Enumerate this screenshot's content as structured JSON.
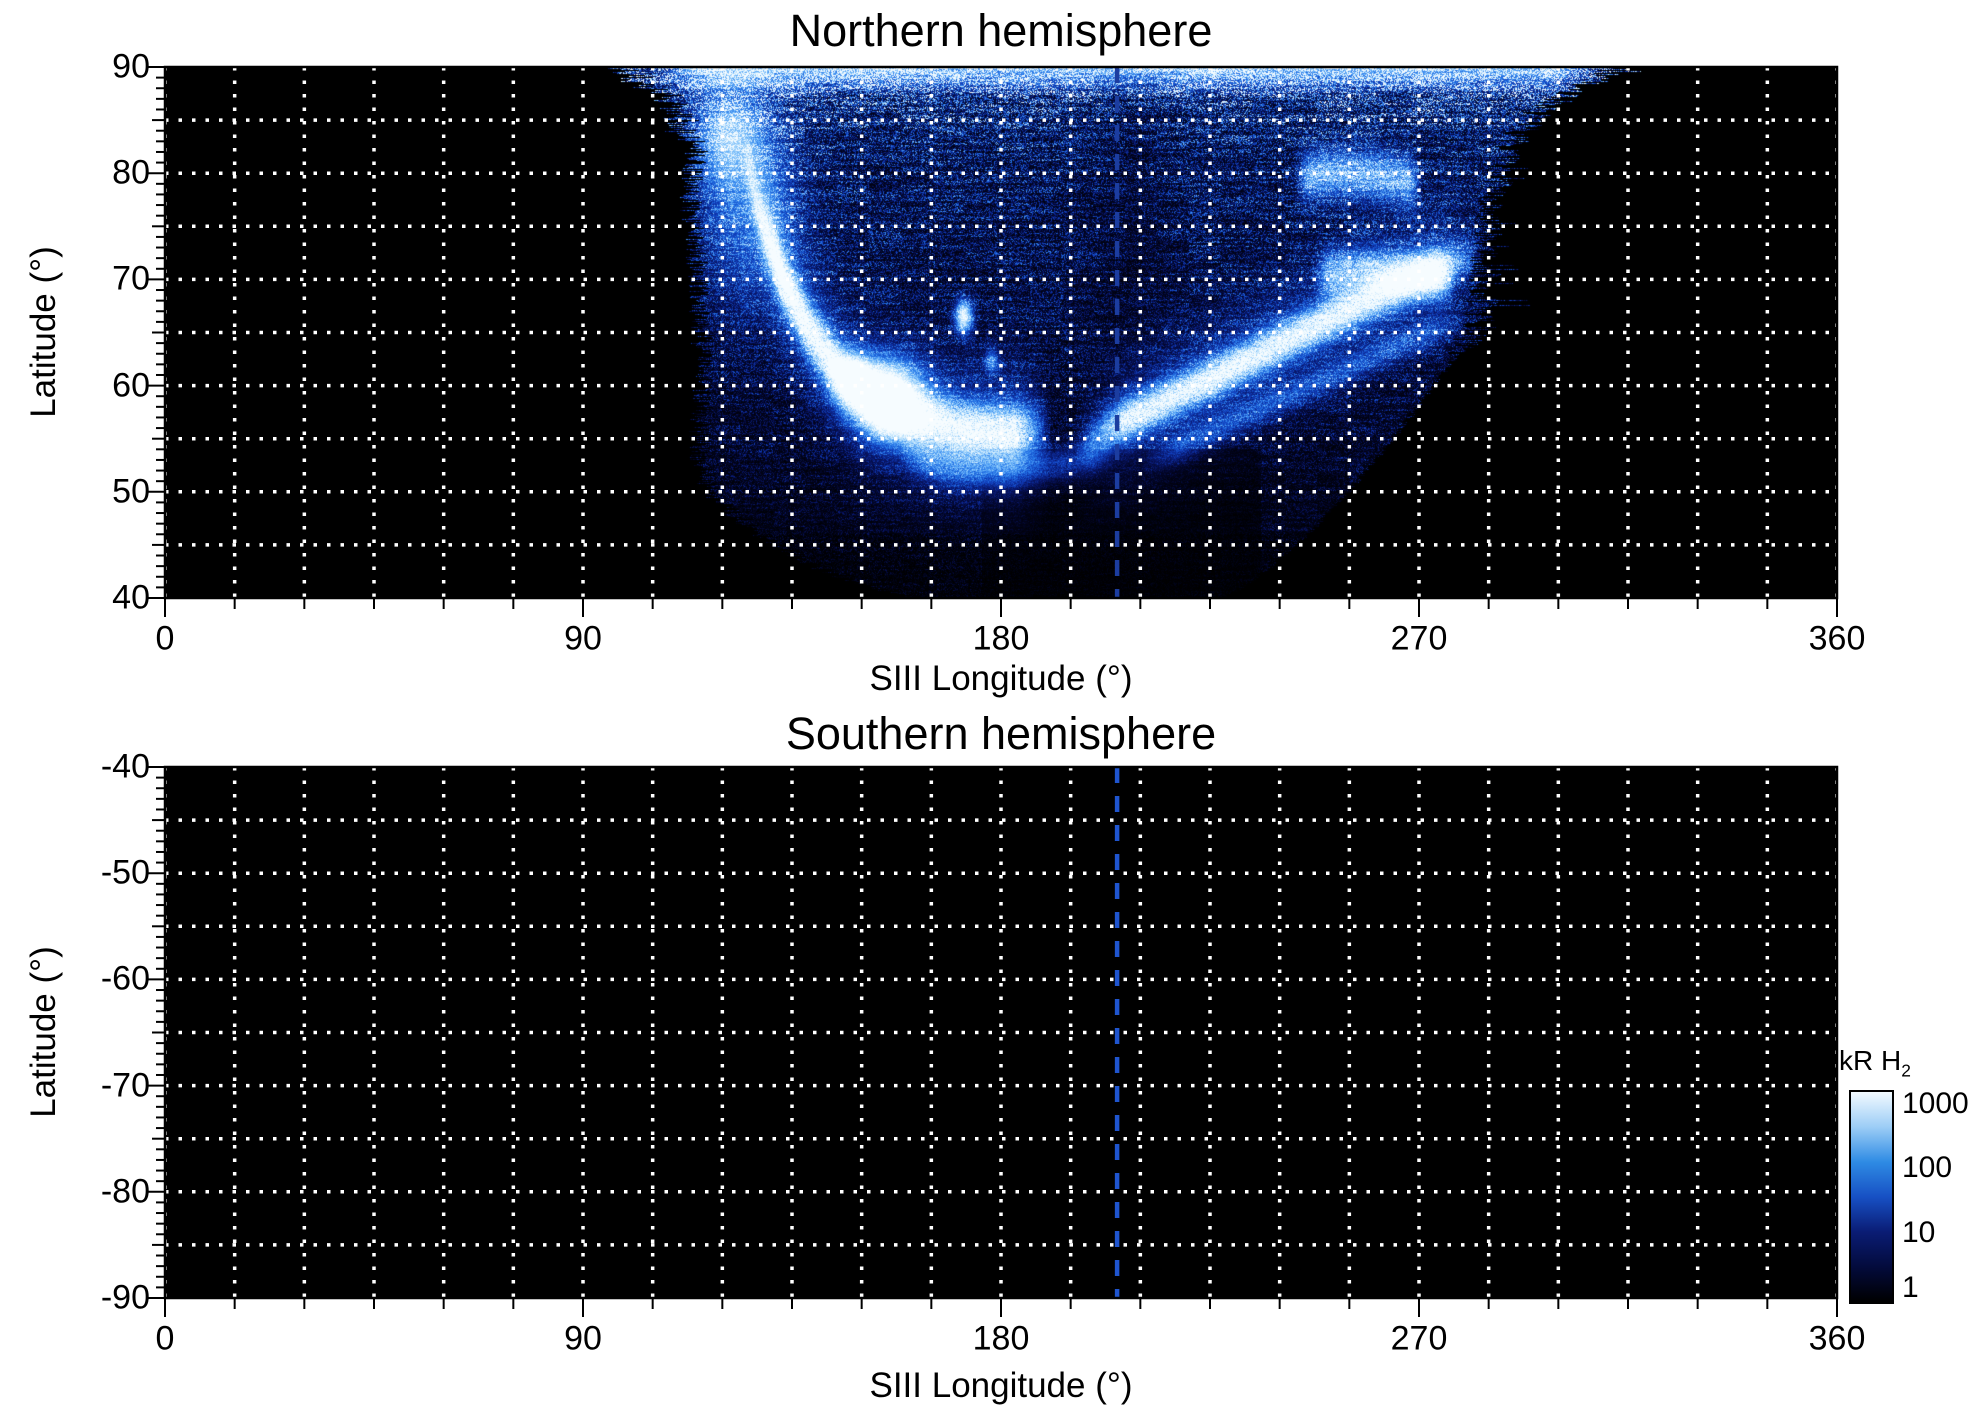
{
  "chart_data": {
    "type": "heatmap",
    "description": "Polar auroral H2 emission maps vs SIII longitude and latitude; northern hemisphere shows auroral data between ~101 and ~312 deg longitude, southern hemisphere map is empty (no data).",
    "intensity_units": "kR H2",
    "panels": [
      {
        "title": "Northern hemisphere",
        "xlabel": "SIII Longitude (°)",
        "ylabel": "Latitude (°)",
        "x_range": [
          0,
          360
        ],
        "y_range": [
          40,
          90
        ],
        "x_tick_labels": [
          "0",
          "90",
          "180",
          "270",
          "360"
        ],
        "x_tick_values": [
          0,
          90,
          180,
          270,
          360
        ],
        "y_tick_labels": [
          "90",
          "80",
          "70",
          "60",
          "50",
          "40"
        ],
        "y_tick_values": [
          90,
          80,
          70,
          60,
          50,
          40
        ],
        "grid": {
          "x_step_deg": 15,
          "y_step_deg": 5,
          "style": "dotted",
          "color": "#ffffff"
        },
        "marker_line": {
          "longitude": 205,
          "style": "dashed",
          "color": "#1c3da0"
        },
        "has_data": true,
        "coverage": {
          "lon_min": 101,
          "lon_max": 312,
          "lat_min": 40,
          "lat_max": 90
        },
        "render": {
          "seed": 7,
          "left_boundary": [
            [
              40,
              162
            ],
            [
              41.2,
              151
            ],
            [
              42.8,
              141
            ],
            [
              45.2,
              131
            ],
            [
              47.6,
              123
            ],
            [
              50,
              117
            ],
            [
              54,
              115
            ],
            [
              62,
              116
            ],
            [
              70,
              115
            ],
            [
              78,
              113
            ],
            [
              84,
              115
            ],
            [
              87,
              112
            ],
            [
              88.5,
              105
            ],
            [
              90,
              101
            ]
          ],
          "right_boundary": [
            [
              40,
              228
            ],
            [
              42.6,
              237
            ],
            [
              46.4,
              247
            ],
            [
              51.2,
              257
            ],
            [
              56,
              266
            ],
            [
              60.6,
              274
            ],
            [
              64,
              280
            ],
            [
              66.6,
              283
            ],
            [
              71,
              284
            ],
            [
              76,
              285
            ],
            [
              80,
              287
            ],
            [
              83,
              290
            ],
            [
              85.5,
              295
            ],
            [
              87.5,
              302
            ],
            [
              89,
              309
            ],
            [
              90,
              312
            ]
          ],
          "base_levels": [
            [
              40,
              0.07
            ],
            [
              48,
              0.11
            ],
            [
              55,
              0.17
            ],
            [
              63,
              0.21
            ],
            [
              73,
              0.26
            ],
            [
              82,
              0.32
            ],
            [
              86,
              0.45
            ],
            [
              88,
              0.62
            ],
            [
              90,
              0.72
            ]
          ],
          "arcs": [
            {
              "pts": [
                [
                  124,
                  83
                ],
                [
                  128,
                  76
                ],
                [
                  133,
                  70
                ],
                [
                  139,
                  65
                ],
                [
                  146,
                  61
                ],
                [
                  153,
                  58.5
                ],
                [
                  161,
                  57
                ],
                [
                  170,
                  56
                ],
                [
                  181,
                  55.5
                ],
                [
                  191,
                  56
                ]
              ],
              "sigma": 1.7,
              "amp": 0.85
            },
            {
              "pts": [
                [
                  124,
                  83
                ],
                [
                  128,
                  76
                ],
                [
                  133,
                  70
                ],
                [
                  139,
                  65
                ],
                [
                  146,
                  61
                ],
                [
                  153,
                  58.5
                ],
                [
                  161,
                  57
                ],
                [
                  170,
                  56
                ],
                [
                  181,
                  55.5
                ],
                [
                  191,
                  56
                ]
              ],
              "sigma": 4.5,
              "amp": 0.28
            },
            {
              "pts": [
                [
                  158,
                  53.5
                ],
                [
                  168,
                  52.3
                ],
                [
                  180,
                  52
                ],
                [
                  193,
                  52.6
                ],
                [
                  205,
                  54
                ]
              ],
              "sigma": 1.2,
              "amp": 0.32
            },
            {
              "pts": [
                [
                  196,
                  54.5
                ],
                [
                  211,
                  57.6
                ],
                [
                  227,
                  61
                ],
                [
                  243,
                  64.6
                ],
                [
                  259,
                  68
                ],
                [
                  272,
                  70.6
                ],
                [
                  284,
                  72.6
                ]
              ],
              "sigma": 1.3,
              "amp": 0.8
            },
            {
              "pts": [
                [
                  196,
                  54.5
                ],
                [
                  211,
                  57.6
                ],
                [
                  227,
                  61
                ],
                [
                  243,
                  64.6
                ],
                [
                  259,
                  68
                ],
                [
                  272,
                  70.6
                ],
                [
                  284,
                  72.6
                ]
              ],
              "sigma": 4.0,
              "amp": 0.22
            },
            {
              "pts": [
                [
                  210,
                  52.6
                ],
                [
                  230,
                  56.6
                ],
                [
                  250,
                  60.6
                ],
                [
                  268,
                  64.2
                ],
                [
                  281,
                  66.4
                ]
              ],
              "sigma": 1.0,
              "amp": 0.28
            },
            {
              "pts": [
                [
                  243,
                  79.6
                ],
                [
                  252,
                  80
                ],
                [
                  262,
                  79.7
                ],
                [
                  271,
                  79
                ]
              ],
              "sigma": 1.6,
              "amp": 0.6
            },
            {
              "pts": [
                [
                  247,
                  70.4
                ],
                [
                  257,
                  71
                ],
                [
                  268,
                  70.6
                ],
                [
                  278,
                  69.8
                ]
              ],
              "sigma": 1.4,
              "amp": 0.55
            }
          ],
          "blobs": [
            {
              "lon": 156,
              "lat": 58.8,
              "slon": 5,
              "slat": 2.4,
              "amp": 1.05
            },
            {
              "lon": 148,
              "lat": 60.6,
              "slon": 3.2,
              "slat": 1.6,
              "amp": 0.6
            },
            {
              "lon": 126,
              "lat": 77,
              "slon": 7.5,
              "slat": 6.5,
              "amp": 0.42
            },
            {
              "lon": 121,
              "lat": 83.5,
              "slon": 5,
              "slat": 3.2,
              "amp": 0.5
            },
            {
              "lon": 172,
              "lat": 66.5,
              "slon": 1.3,
              "slat": 1.1,
              "amp": 0.95
            },
            {
              "lon": 178,
              "lat": 62.3,
              "slon": 1.0,
              "slat": 0.8,
              "amp": 0.45
            }
          ],
          "dark_zones": [
            {
              "type": "vgauss",
              "lon": 207,
              "slon": 6,
              "lat_min": 60,
              "lat_max": 90,
              "depth": 0.3
            },
            {
              "type": "box",
              "lon_min": 176,
              "lon_max": 236,
              "lat_min": 40,
              "lat_max": 54,
              "factor": 0.5
            }
          ],
          "top_cap": {
            "lat_start": 87.2,
            "amp": 0.55,
            "lon_min": 105,
            "lon_max": 308,
            "edge_fade": 10
          }
        }
      },
      {
        "title": "Southern hemisphere",
        "xlabel": "SIII Longitude (°)",
        "ylabel": "Latitude (°)",
        "x_range": [
          0,
          360
        ],
        "y_range": [
          -90,
          -40
        ],
        "x_tick_labels": [
          "0",
          "90",
          "180",
          "270",
          "360"
        ],
        "x_tick_values": [
          0,
          90,
          180,
          270,
          360
        ],
        "y_tick_labels": [
          "-40",
          "-50",
          "-60",
          "-70",
          "-80",
          "-90"
        ],
        "y_tick_values": [
          -40,
          -50,
          -60,
          -70,
          -80,
          -90
        ],
        "grid": {
          "x_step_deg": 15,
          "y_step_deg": 5,
          "style": "dotted",
          "color": "#ffffff"
        },
        "marker_line": {
          "longitude": 205,
          "style": "dashed",
          "color": "#1f55cf"
        },
        "has_data": false
      }
    ],
    "colorbar": {
      "label_prefix": "kR H",
      "label_sub": "2",
      "scale": "log",
      "range": [
        1,
        1000
      ],
      "tick_labels": [
        "1000",
        "100",
        "10",
        "1"
      ],
      "tick_values": [
        1000,
        100,
        10,
        1
      ],
      "gradient_stops": [
        "#f2faff",
        "#9ccdf6",
        "#2e8be4",
        "#1750c4",
        "#0a1c74",
        "#030b3c",
        "#000000"
      ]
    },
    "colormap": [
      [
        0,
        "#000000"
      ],
      [
        0.1,
        "#020526"
      ],
      [
        0.22,
        "#081669"
      ],
      [
        0.36,
        "#103cb9"
      ],
      [
        0.5,
        "#2373e6"
      ],
      [
        0.65,
        "#64aff8"
      ],
      [
        0.8,
        "#b4defc"
      ],
      [
        1,
        "#f6fcff"
      ]
    ],
    "background_color": "#000000"
  }
}
